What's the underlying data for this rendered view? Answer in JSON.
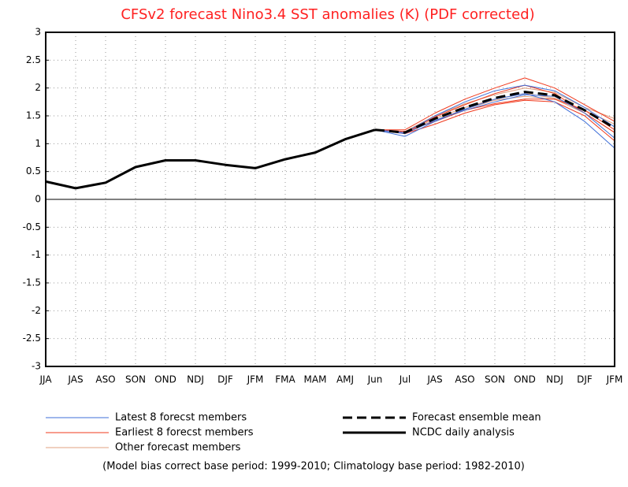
{
  "chart_data": {
    "type": "line",
    "title": "CFSv2 forecast Nino3.4 SST anomalies (K) (PDF corrected)",
    "footnote": "(Model bias correct base period: 1999-2010; Climatology base period: 1982-2010)",
    "categories": [
      "JJA",
      "JAS",
      "ASO",
      "SON",
      "OND",
      "NDJ",
      "DJF",
      "JFM",
      "FMA",
      "MAM",
      "AMJ",
      "Jun",
      "Jul",
      "JAS",
      "ASO",
      "SON",
      "OND",
      "NDJ",
      "DJF",
      "JFM"
    ],
    "ylim": [
      -3,
      3
    ],
    "yticks": [
      -3,
      -2.5,
      -2,
      -1.5,
      -1,
      -0.5,
      0,
      0.5,
      1,
      1.5,
      2,
      2.5,
      3
    ],
    "grid": true,
    "series": [
      {
        "name": "Latest 8 forecst members",
        "color": "#3f6fd8",
        "linestyle": "solid",
        "values": [
          [
            null,
            null,
            null,
            null,
            null,
            null,
            null,
            null,
            null,
            null,
            null,
            1.25,
            1.13,
            1.4,
            1.62,
            1.8,
            1.9,
            1.75,
            1.4,
            0.92
          ],
          [
            null,
            null,
            null,
            null,
            null,
            null,
            null,
            null,
            null,
            null,
            null,
            1.25,
            1.2,
            1.5,
            1.75,
            1.95,
            2.05,
            1.95,
            1.65,
            1.3
          ],
          [
            null,
            null,
            null,
            null,
            null,
            null,
            null,
            null,
            null,
            null,
            null,
            1.25,
            1.18,
            1.42,
            1.6,
            1.75,
            1.88,
            1.85,
            1.55,
            1.1
          ]
        ]
      },
      {
        "name": "Earliest 8 forecst members",
        "color": "#f03a1e",
        "linestyle": "solid",
        "values": [
          [
            null,
            null,
            null,
            null,
            null,
            null,
            null,
            null,
            null,
            null,
            null,
            1.25,
            1.25,
            1.55,
            1.8,
            2.0,
            2.18,
            2.0,
            1.7,
            1.4
          ],
          [
            null,
            null,
            null,
            null,
            null,
            null,
            null,
            null,
            null,
            null,
            null,
            1.25,
            1.22,
            1.4,
            1.6,
            1.72,
            1.8,
            1.8,
            1.6,
            1.25
          ],
          [
            null,
            null,
            null,
            null,
            null,
            null,
            null,
            null,
            null,
            null,
            null,
            1.25,
            1.2,
            1.48,
            1.7,
            1.9,
            2.05,
            1.9,
            1.55,
            1.2
          ],
          [
            null,
            null,
            null,
            null,
            null,
            null,
            null,
            null,
            null,
            null,
            null,
            1.25,
            1.18,
            1.35,
            1.55,
            1.7,
            1.78,
            1.75,
            1.5,
            1.05
          ]
        ]
      },
      {
        "name": "Other forecast members",
        "color": "#e0a080",
        "linestyle": "solid",
        "values": [
          [
            null,
            null,
            null,
            null,
            null,
            null,
            null,
            null,
            null,
            null,
            null,
            1.25,
            1.22,
            1.5,
            1.72,
            1.88,
            2.0,
            1.92,
            1.65,
            1.45
          ],
          [
            null,
            null,
            null,
            null,
            null,
            null,
            null,
            null,
            null,
            null,
            null,
            1.25,
            1.2,
            1.45,
            1.65,
            1.8,
            1.9,
            1.82,
            1.6,
            1.35
          ],
          [
            null,
            null,
            null,
            null,
            null,
            null,
            null,
            null,
            null,
            null,
            null,
            1.25,
            1.2,
            1.42,
            1.62,
            1.78,
            1.85,
            1.8,
            1.55,
            1.2
          ]
        ]
      },
      {
        "name": "Forecast ensemble mean",
        "color": "#000000",
        "linestyle": "dashed",
        "values": [
          null,
          null,
          null,
          null,
          null,
          null,
          null,
          null,
          null,
          null,
          null,
          1.25,
          1.2,
          1.45,
          1.65,
          1.82,
          1.93,
          1.87,
          1.6,
          1.28
        ]
      },
      {
        "name": "NCDC daily analysis",
        "color": "#000000",
        "linestyle": "solid",
        "values": [
          0.32,
          0.2,
          0.3,
          0.58,
          0.7,
          0.7,
          0.62,
          0.56,
          0.72,
          0.84,
          1.08,
          1.25,
          null,
          null,
          null,
          null,
          null,
          null,
          null,
          null
        ]
      }
    ]
  }
}
